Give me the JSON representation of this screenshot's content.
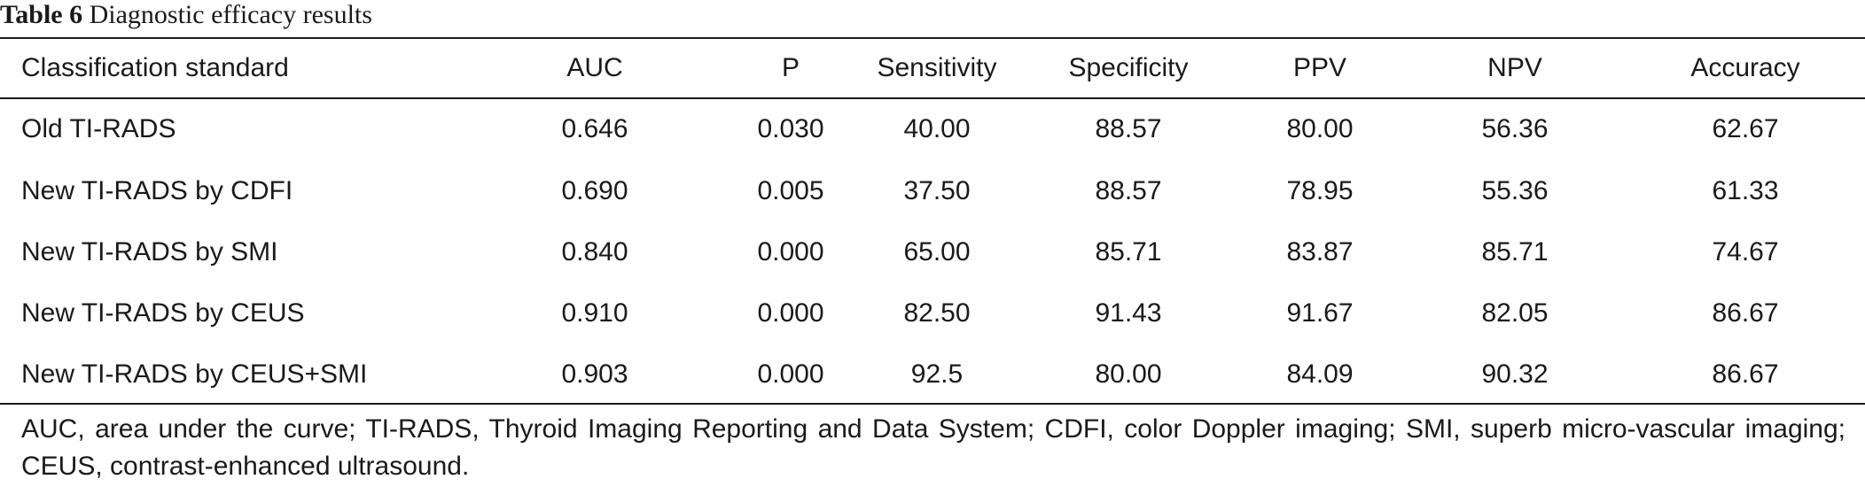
{
  "caption": {
    "label": "Table 6",
    "title": "Diagnostic efficacy results"
  },
  "table": {
    "headers": [
      "Classification standard",
      "AUC",
      "P",
      "Sensitivity",
      "Specificity",
      "PPV",
      "NPV",
      "Accuracy"
    ],
    "rows": [
      [
        "Old TI-RADS",
        "0.646",
        "0.030",
        "40.00",
        "88.57",
        "80.00",
        "56.36",
        "62.67"
      ],
      [
        "New TI-RADS by CDFI",
        "0.690",
        "0.005",
        "37.50",
        "88.57",
        "78.95",
        "55.36",
        "61.33"
      ],
      [
        "New TI-RADS by SMI",
        "0.840",
        "0.000",
        "65.00",
        "85.71",
        "83.87",
        "85.71",
        "74.67"
      ],
      [
        "New TI-RADS by CEUS",
        "0.910",
        "0.000",
        "82.50",
        "91.43",
        "91.67",
        "82.05",
        "86.67"
      ],
      [
        "New TI-RADS by CEUS+SMI",
        "0.903",
        "0.000",
        "92.5",
        "80.00",
        "84.09",
        "90.32",
        "86.67"
      ]
    ]
  },
  "footnote": "AUC, area under the curve; TI-RADS, Thyroid Imaging Reporting and Data System; CDFI, color Doppler imaging; SMI, superb micro-vascular imaging; CEUS, contrast-enhanced ultrasound."
}
